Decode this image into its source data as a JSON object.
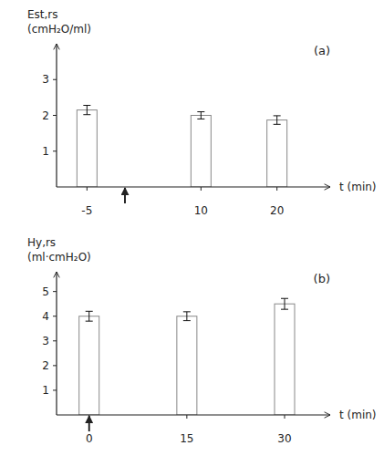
{
  "chart_data": [
    {
      "type": "bar",
      "title": "(a)",
      "xlabel": "t (min)",
      "ylabel": [
        "Est,rs",
        "(cmH₂O/ml)"
      ],
      "x": [
        -5,
        10,
        20
      ],
      "values": [
        2.15,
        2.0,
        1.87
      ],
      "errors": [
        0.13,
        0.1,
        0.12
      ],
      "xlim": [
        -9,
        27
      ],
      "xticks": [
        -5,
        10,
        20
      ],
      "ylim": [
        0,
        4.0
      ],
      "yticks": [
        1,
        2,
        3
      ],
      "color": "white",
      "grid": false,
      "annotations": [
        {
          "x": 0,
          "shape": "arrow"
        }
      ]
    },
    {
      "type": "bar",
      "title": "(b)",
      "xlabel": "t (min)",
      "ylabel": [
        "Hy,rs",
        "(ml·cmH₂O)"
      ],
      "x": [
        0,
        15,
        30
      ],
      "values": [
        4.0,
        4.0,
        4.5
      ],
      "errors": [
        0.2,
        0.18,
        0.22
      ],
      "xlim": [
        -5,
        37
      ],
      "xticks": [
        0,
        15,
        30
      ],
      "ylim": [
        0,
        5.8
      ],
      "yticks": [
        1,
        2,
        3,
        4,
        5
      ],
      "color": "white",
      "grid": false,
      "annotations": [
        {
          "x": 0,
          "shape": "arrow"
        }
      ]
    }
  ]
}
